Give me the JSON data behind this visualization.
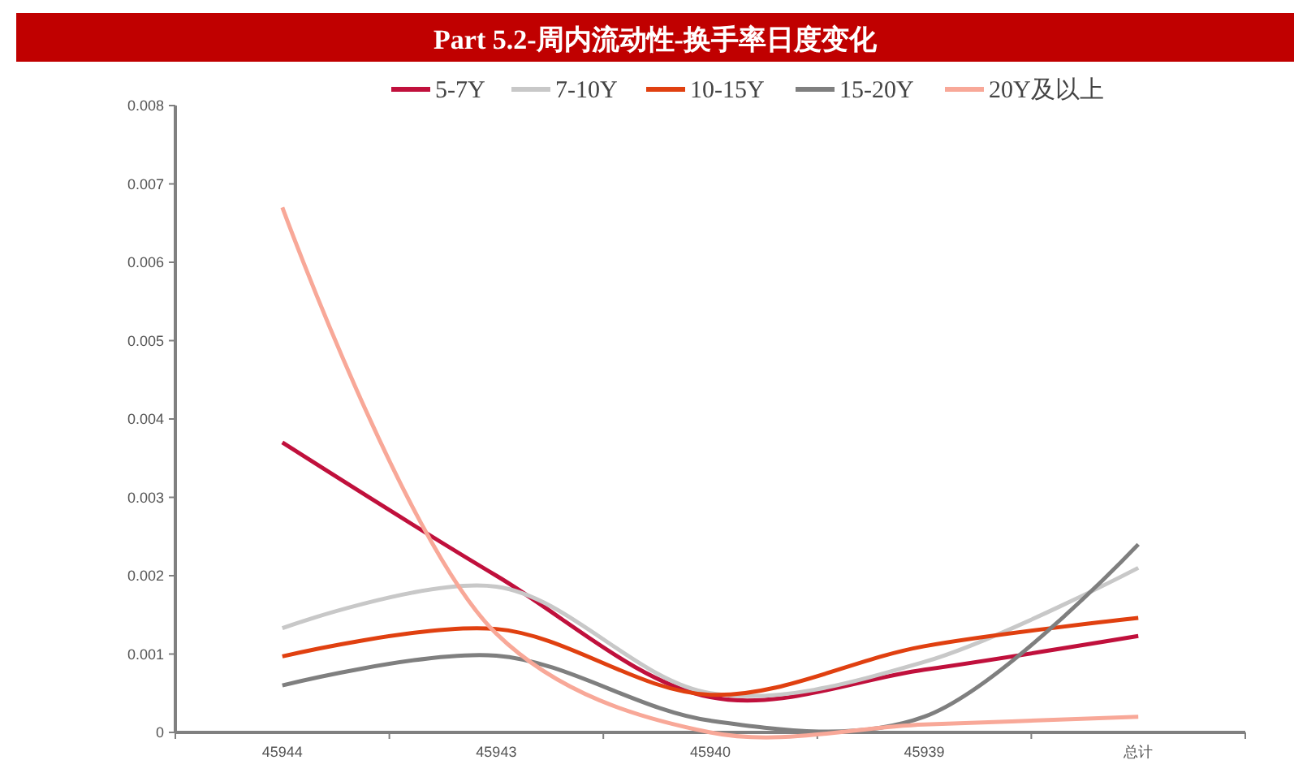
{
  "chart_data": {
    "type": "line",
    "title": "Part 5.2-周内流动性-换手率日度变化",
    "categories": [
      "45944",
      "45943",
      "45940",
      "45939",
      "总计"
    ],
    "series": [
      {
        "name": "5-7Y",
        "color": "#c0103c",
        "values": [
          0.0037,
          0.002,
          0.00045,
          0.0008,
          0.00123
        ]
      },
      {
        "name": "7-10Y",
        "color": "#c8c8c8",
        "values": [
          0.00133,
          0.00186,
          0.0005,
          0.0009,
          0.0021
        ]
      },
      {
        "name": "10-15Y",
        "color": "#e04010",
        "values": [
          0.00097,
          0.00132,
          0.00048,
          0.0011,
          0.00146
        ]
      },
      {
        "name": "15-20Y",
        "color": "#7f7f7f",
        "values": [
          0.0006,
          0.00098,
          0.00015,
          0.0002,
          0.0024
        ]
      },
      {
        "name": "20Y及以上",
        "color": "#f8a898",
        "values": [
          0.0067,
          0.00126,
          0.0,
          0.0001,
          0.0002
        ]
      }
    ],
    "ylim": [
      0,
      0.008
    ],
    "yticks": [
      0,
      0.001,
      0.002,
      0.003,
      0.004,
      0.005,
      0.006,
      0.007,
      0.008
    ],
    "grid": false,
    "legend": "top",
    "marker": "none",
    "line_style": "solid"
  }
}
